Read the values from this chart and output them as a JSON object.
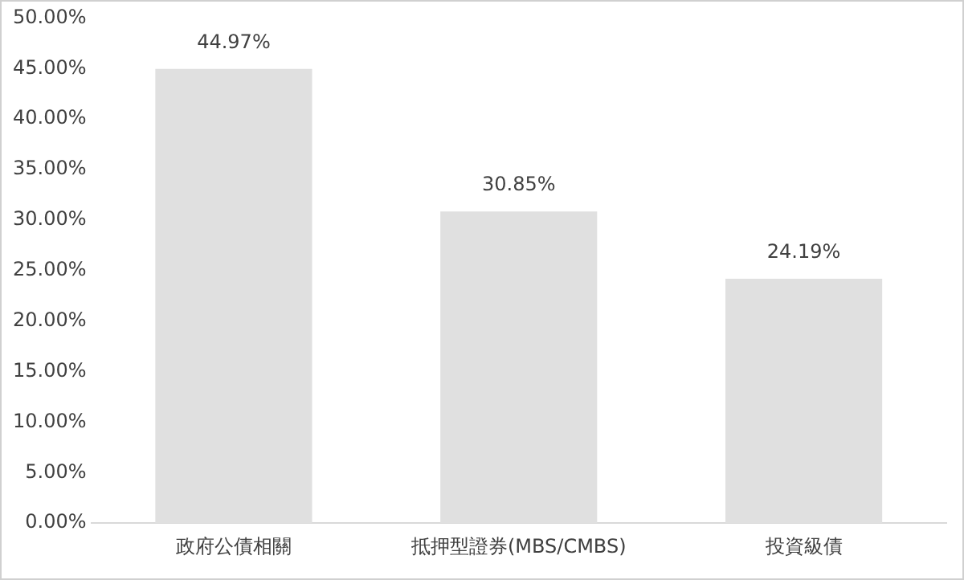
{
  "chart_data": {
    "type": "bar",
    "categories": [
      "政府公債相關",
      "抵押型證券(MBS/CMBS)",
      "投資級債"
    ],
    "values": [
      44.97,
      30.85,
      24.19
    ],
    "color": "#e0e0e0",
    "value_labels": [
      "44.97%",
      "30.85%",
      "24.19%"
    ],
    "ylim": [
      0,
      50
    ],
    "yticks": [
      {
        "value": 0,
        "label": "0.00%"
      },
      {
        "value": 5,
        "label": "5.00%"
      },
      {
        "value": 10,
        "label": "10.00%"
      },
      {
        "value": 15,
        "label": "15.00%"
      },
      {
        "value": 20,
        "label": "20.00%"
      },
      {
        "value": 25,
        "label": "25.00%"
      },
      {
        "value": 30,
        "label": "30.00%"
      },
      {
        "value": 35,
        "label": "35.00%"
      },
      {
        "value": 40,
        "label": "40.00%"
      },
      {
        "value": 45,
        "label": "45.00%"
      },
      {
        "value": 50,
        "label": "50.00%"
      }
    ],
    "grid": false,
    "legend": false
  }
}
